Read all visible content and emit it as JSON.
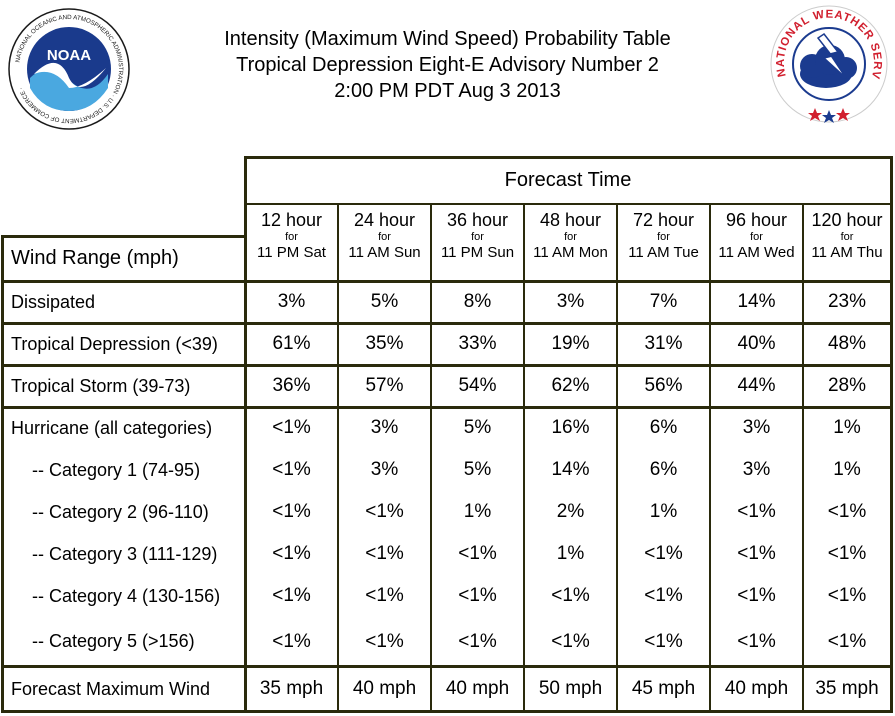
{
  "header": {
    "title_line1": "Intensity (Maximum Wind Speed) Probability Table",
    "title_line2": "Tropical Depression Eight-E Advisory Number 2",
    "title_line3": "2:00 PM PDT Aug 3 2013"
  },
  "logos": {
    "noaa_text": "NOAA",
    "noaa_ring": "NATIONAL OCEANIC AND ATMOSPHERIC ADMINISTRATION · U.S. DEPARTMENT OF COMMERCE ·",
    "nws_ring": "NATIONAL WEATHER SERVICE"
  },
  "table": {
    "group_header": "Forecast Time",
    "row_header_label": "Wind Range (mph)",
    "columns": [
      {
        "hours": "12 hour",
        "for": "for",
        "when": "11 PM Sat"
      },
      {
        "hours": "24 hour",
        "for": "for",
        "when": "11 AM Sun"
      },
      {
        "hours": "36 hour",
        "for": "for",
        "when": "11 PM Sun"
      },
      {
        "hours": "48 hour",
        "for": "for",
        "when": "11 AM Mon"
      },
      {
        "hours": "72 hour",
        "for": "for",
        "when": "11 AM Tue"
      },
      {
        "hours": "96 hour",
        "for": "for",
        "when": "11 AM Wed"
      },
      {
        "hours": "120 hour",
        "for": "for",
        "when": "11 AM Thu"
      }
    ],
    "rows": [
      {
        "label": "Dissipated",
        "indent": false,
        "values": [
          "3%",
          "5%",
          "8%",
          "3%",
          "7%",
          "14%",
          "23%"
        ]
      },
      {
        "label": "Tropical Depression (<39)",
        "indent": false,
        "values": [
          "61%",
          "35%",
          "33%",
          "19%",
          "31%",
          "40%",
          "48%"
        ]
      },
      {
        "label": "Tropical Storm (39-73)",
        "indent": false,
        "values": [
          "36%",
          "57%",
          "54%",
          "62%",
          "56%",
          "44%",
          "28%"
        ]
      },
      {
        "label": "Hurricane (all categories)",
        "indent": false,
        "values": [
          "<1%",
          "3%",
          "5%",
          "16%",
          "6%",
          "3%",
          "1%"
        ]
      },
      {
        "label": "-- Category 1 (74-95)",
        "indent": true,
        "values": [
          "<1%",
          "3%",
          "5%",
          "14%",
          "6%",
          "3%",
          "1%"
        ]
      },
      {
        "label": "-- Category 2 (96-110)",
        "indent": true,
        "values": [
          "<1%",
          "<1%",
          "1%",
          "2%",
          "1%",
          "<1%",
          "<1%"
        ]
      },
      {
        "label": "-- Category 3 (111-129)",
        "indent": true,
        "values": [
          "<1%",
          "<1%",
          "<1%",
          "1%",
          "<1%",
          "<1%",
          "<1%"
        ]
      },
      {
        "label": "-- Category 4 (130-156)",
        "indent": true,
        "values": [
          "<1%",
          "<1%",
          "<1%",
          "<1%",
          "<1%",
          "<1%",
          "<1%"
        ]
      },
      {
        "label": "-- Category 5 (>156)",
        "indent": true,
        "values": [
          "<1%",
          "<1%",
          "<1%",
          "<1%",
          "<1%",
          "<1%",
          "<1%"
        ]
      }
    ],
    "footer": {
      "label": "Forecast Maximum Wind",
      "values": [
        "35 mph",
        "40 mph",
        "40 mph",
        "50 mph",
        "45 mph",
        "40 mph",
        "35 mph"
      ]
    }
  },
  "colors": {
    "grid": "#2a2a0c",
    "noaa_blue": "#1a3a8c",
    "nws_red": "#d11f2e",
    "nws_blue": "#1b3b8f"
  }
}
